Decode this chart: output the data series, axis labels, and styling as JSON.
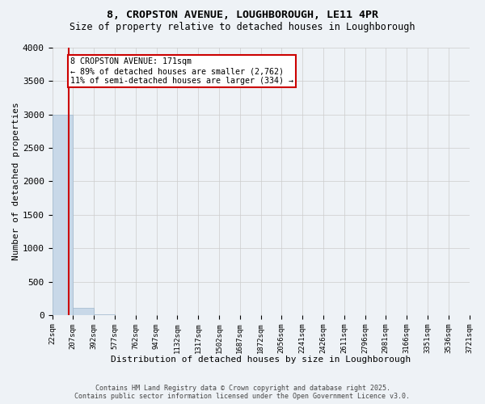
{
  "title_line1": "8, CROPSTON AVENUE, LOUGHBOROUGH, LE11 4PR",
  "title_line2": "Size of property relative to detached houses in Loughborough",
  "xlabel": "Distribution of detached houses by size in Loughborough",
  "ylabel": "Number of detached properties",
  "bin_edges": [
    "22sqm",
    "207sqm",
    "392sqm",
    "577sqm",
    "762sqm",
    "947sqm",
    "1132sqm",
    "1317sqm",
    "1502sqm",
    "1687sqm",
    "1872sqm",
    "2056sqm",
    "2241sqm",
    "2426sqm",
    "2611sqm",
    "2796sqm",
    "2981sqm",
    "3166sqm",
    "3351sqm",
    "3536sqm",
    "3721sqm"
  ],
  "bar_heights": [
    3000,
    110,
    5,
    2,
    1,
    0,
    0,
    0,
    0,
    0,
    0,
    0,
    0,
    0,
    0,
    0,
    0,
    0,
    0,
    0
  ],
  "bar_color": "#c8d8e8",
  "bar_edge_color": "#a0b8cc",
  "ylim": [
    0,
    4000
  ],
  "yticks": [
    0,
    500,
    1000,
    1500,
    2000,
    2500,
    3000,
    3500,
    4000
  ],
  "property_line_color": "#cc0000",
  "annotation_text": "8 CROPSTON AVENUE: 171sqm\n← 89% of detached houses are smaller (2,762)\n11% of semi-detached houses are larger (334) →",
  "annotation_box_color": "#ffffff",
  "annotation_box_edge": "#cc0000",
  "footer_line1": "Contains HM Land Registry data © Crown copyright and database right 2025.",
  "footer_line2": "Contains public sector information licensed under the Open Government Licence v3.0.",
  "background_color": "#eef2f6",
  "plot_bg_color": "#eef2f6",
  "grid_color": "#cccccc"
}
